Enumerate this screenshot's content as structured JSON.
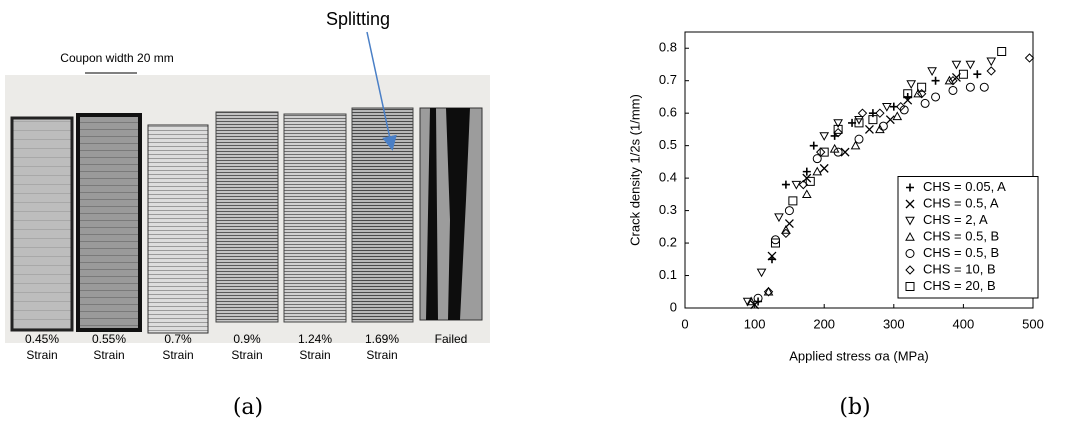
{
  "photo": {
    "annotation": "Splitting",
    "scale_label": "Coupon width 20 mm",
    "coupons": [
      {
        "label": [
          "0.45%",
          "Strain"
        ]
      },
      {
        "label": [
          "0.55%",
          "Strain"
        ]
      },
      {
        "label": [
          "0.7%",
          "Strain"
        ]
      },
      {
        "label": [
          "0.9%",
          "Strain"
        ]
      },
      {
        "label": [
          "1.24%",
          "Strain"
        ]
      },
      {
        "label": [
          "1.69%",
          "Strain"
        ]
      },
      {
        "label": [
          "Failed"
        ]
      }
    ],
    "caption": "(a)"
  },
  "chart_data": {
    "type": "scatter",
    "caption": "(b)",
    "xlabel": "Applied stress σa (MPa)",
    "ylabel": "Crack density 1/2s (1/mm)",
    "xlim": [
      0,
      500
    ],
    "ylim": [
      0,
      0.85
    ],
    "xticks": [
      0,
      100,
      200,
      300,
      400,
      500
    ],
    "yticks": [
      0,
      0.1,
      0.2,
      0.3,
      0.4,
      0.5,
      0.6,
      0.7,
      0.8
    ],
    "legend": "lower right",
    "series": [
      {
        "name": "CHS = 0.05, A",
        "marker": "plus",
        "color": "#000000",
        "x": [
          105,
          125,
          145,
          175,
          185,
          215,
          240,
          270,
          300,
          320,
          360,
          420
        ],
        "values": [
          0.02,
          0.15,
          0.38,
          0.42,
          0.5,
          0.53,
          0.57,
          0.6,
          0.62,
          0.65,
          0.7,
          0.72
        ]
      },
      {
        "name": "CHS = 0.5, A",
        "marker": "cross",
        "color": "#000000",
        "x": [
          100,
          125,
          150,
          175,
          200,
          230,
          265,
          295,
          320,
          390
        ],
        "values": [
          0.01,
          0.16,
          0.26,
          0.4,
          0.43,
          0.48,
          0.55,
          0.58,
          0.64,
          0.71
        ]
      },
      {
        "name": "CHS = 2, A",
        "marker": "triangle-down",
        "color": "#000000",
        "x": [
          90,
          110,
          135,
          160,
          200,
          220,
          250,
          290,
          325,
          355,
          390,
          410,
          440
        ],
        "values": [
          0.02,
          0.11,
          0.28,
          0.38,
          0.53,
          0.57,
          0.58,
          0.62,
          0.69,
          0.73,
          0.75,
          0.75,
          0.76
        ]
      },
      {
        "name": "CHS = 0.5, B",
        "marker": "triangle-up",
        "color": "#000000",
        "x": [
          95,
          120,
          145,
          175,
          190,
          215,
          245,
          280,
          305,
          335,
          380
        ],
        "values": [
          0.02,
          0.05,
          0.24,
          0.35,
          0.42,
          0.49,
          0.5,
          0.55,
          0.59,
          0.66,
          0.7
        ]
      },
      {
        "name": "CHS = 0.5, B",
        "marker": "circle",
        "color": "#000000",
        "x": [
          105,
          130,
          150,
          190,
          220,
          250,
          285,
          315,
          345,
          360,
          385,
          410,
          430
        ],
        "values": [
          0.03,
          0.21,
          0.3,
          0.46,
          0.48,
          0.52,
          0.56,
          0.61,
          0.63,
          0.65,
          0.67,
          0.68,
          0.68
        ]
      },
      {
        "name": "CHS = 10, B",
        "marker": "diamond",
        "color": "#000000",
        "x": [
          120,
          145,
          170,
          195,
          220,
          255,
          280,
          310,
          340,
          385,
          440,
          495
        ],
        "values": [
          0.05,
          0.23,
          0.38,
          0.48,
          0.54,
          0.6,
          0.6,
          0.62,
          0.66,
          0.7,
          0.73,
          0.77
        ]
      },
      {
        "name": "CHS = 20, B",
        "marker": "square",
        "color": "#000000",
        "x": [
          130,
          155,
          180,
          200,
          220,
          250,
          270,
          320,
          340,
          400,
          455
        ],
        "values": [
          0.2,
          0.33,
          0.39,
          0.48,
          0.55,
          0.57,
          0.58,
          0.66,
          0.68,
          0.72,
          0.79
        ]
      }
    ]
  }
}
